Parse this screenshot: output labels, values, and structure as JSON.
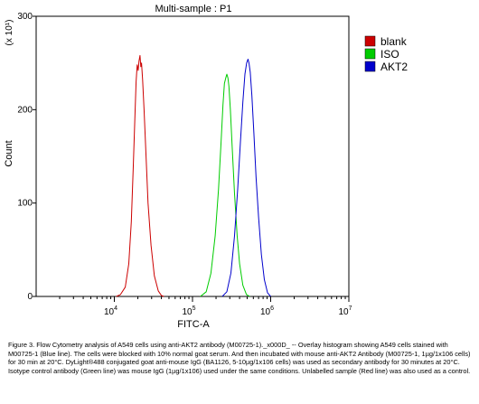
{
  "chart_data": {
    "type": "area",
    "title": "Multi-sample : P1",
    "xlabel": "FITC-A",
    "ylabel": "Count",
    "y_multiplier": "(x 10¹)",
    "x_scale": "log",
    "xlim": [
      1000,
      10000000
    ],
    "ylim": [
      0,
      300
    ],
    "grid": false,
    "legend_position": "right",
    "x_ticks": [
      {
        "value": 10000,
        "base": "10",
        "exp": "4"
      },
      {
        "value": 100000,
        "base": "10",
        "exp": "5"
      },
      {
        "value": 1000000,
        "base": "10",
        "exp": "6"
      },
      {
        "value": 10000000,
        "base": "10",
        "exp": "7"
      }
    ],
    "y_ticks": [
      {
        "value": 0,
        "label": "0"
      },
      {
        "value": 100,
        "label": "100"
      },
      {
        "value": 200,
        "label": "200"
      },
      {
        "value": 300,
        "label": "300"
      }
    ],
    "series": [
      {
        "name": "blank",
        "color": "#cc0000",
        "points": [
          [
            10600,
            0
          ],
          [
            12000,
            2
          ],
          [
            13800,
            10
          ],
          [
            15300,
            35
          ],
          [
            16500,
            80
          ],
          [
            17500,
            140
          ],
          [
            18300,
            190
          ],
          [
            19000,
            230
          ],
          [
            19600,
            248
          ],
          [
            20200,
            242
          ],
          [
            20700,
            252
          ],
          [
            21300,
            258
          ],
          [
            21800,
            246
          ],
          [
            22300,
            250
          ],
          [
            23000,
            232
          ],
          [
            24000,
            200
          ],
          [
            25500,
            148
          ],
          [
            27000,
            100
          ],
          [
            29500,
            55
          ],
          [
            32500,
            22
          ],
          [
            36500,
            6
          ],
          [
            40000,
            1
          ],
          [
            43000,
            0
          ]
        ]
      },
      {
        "name": "ISO",
        "color": "#00cc00",
        "points": [
          [
            126000,
            0
          ],
          [
            150000,
            5
          ],
          [
            172000,
            25
          ],
          [
            195000,
            65
          ],
          [
            215000,
            115
          ],
          [
            232000,
            165
          ],
          [
            245000,
            205
          ],
          [
            256000,
            228
          ],
          [
            266000,
            234
          ],
          [
            275000,
            238
          ],
          [
            284000,
            234
          ],
          [
            292000,
            225
          ],
          [
            305000,
            200
          ],
          [
            322000,
            160
          ],
          [
            345000,
            110
          ],
          [
            372000,
            65
          ],
          [
            400000,
            35
          ],
          [
            440000,
            12
          ],
          [
            490000,
            2
          ],
          [
            540000,
            0
          ]
        ]
      },
      {
        "name": "AKT2",
        "color": "#0000cc",
        "points": [
          [
            240000,
            0
          ],
          [
            275000,
            5
          ],
          [
            310000,
            25
          ],
          [
            345000,
            65
          ],
          [
            378000,
            115
          ],
          [
            410000,
            165
          ],
          [
            440000,
            208
          ],
          [
            468000,
            238
          ],
          [
            492000,
            250
          ],
          [
            512000,
            254
          ],
          [
            528000,
            250
          ],
          [
            548000,
            240
          ],
          [
            575000,
            215
          ],
          [
            610000,
            175
          ],
          [
            650000,
            128
          ],
          [
            700000,
            85
          ],
          [
            760000,
            45
          ],
          [
            830000,
            18
          ],
          [
            910000,
            4
          ],
          [
            1000000,
            0
          ]
        ]
      }
    ]
  },
  "caption": "Figure 3. Flow Cytometry analysis of A549 cells using anti-AKT2 antibody (M00725-1)._x000D_ -- Overlay histogram showing A549 cells stained with M00725-1 (Blue line). The cells were blocked with 10% normal goat serum. And then incubated with mouse anti-AKT2 Antibody (M00725-1, 1µg/1x106 cells) for 30 min at 20°C. DyLight®488 conjugated goat anti-mouse IgG (BA1126, 5-10µg/1x106 cells) was used as secondary antibody for 30 minutes at 20°C. Isotype control antibody (Green line) was mouse IgG (1µg/1x106) used under the same conditions. Unlabelled sample (Red line) was also used as a control."
}
